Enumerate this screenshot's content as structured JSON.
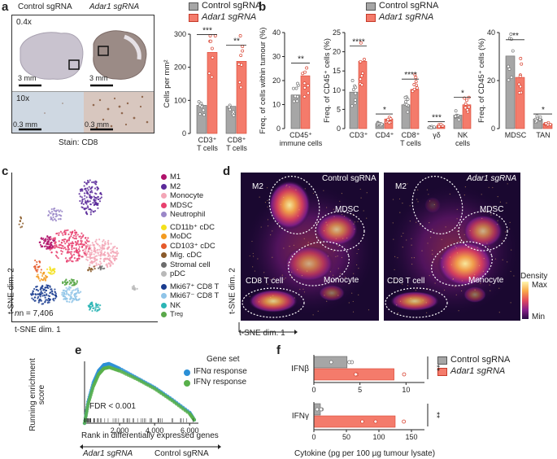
{
  "panels": {
    "a": {
      "label": "a",
      "micro": {
        "control_title": "Control sgRNA",
        "adar_title": "Adar1 sgRNA",
        "mag_low": "0.4x",
        "mag_high": "10x",
        "scale_low_left": "3 mm",
        "scale_low_right": "3 mm",
        "scale_high_left": "0.3 mm",
        "scale_high_right": "0.3 mm",
        "stain": "Stain: CD8"
      },
      "legend": [
        "Control sgRNA",
        "Adar1 sgRNA"
      ],
      "chart": {
        "type": "bar",
        "ylabel": "Cells per mm²",
        "ylim": [
          0,
          300
        ],
        "yticks": [
          "0",
          "100",
          "200",
          "300"
        ],
        "categories": [
          "CD3⁺ T cells",
          "CD8⁺ T cells"
        ],
        "series": [
          {
            "name": "Control sgRNA",
            "values": [
              85,
              82
            ]
          },
          {
            "name": "Adar1 sgRNA",
            "values": [
              245,
              218
            ]
          }
        ],
        "sig": [
          "***",
          "**"
        ]
      }
    },
    "b": {
      "label": "b",
      "legend": [
        "Control sgRNA",
        "Adar1 sgRNA"
      ],
      "chart1": {
        "ylabel": "Freq. of cells within tumour (%)",
        "ylim": [
          0,
          40
        ],
        "yticks": [
          "0",
          "10",
          "20",
          "30",
          "40"
        ],
        "categories": [
          "CD45⁺ immune cells"
        ],
        "series": [
          {
            "name": "Control sgRNA",
            "values": [
              14
            ]
          },
          {
            "name": "Adar1 sgRNA",
            "values": [
              22
            ]
          }
        ],
        "sig": [
          "**"
        ]
      },
      "chart2": {
        "ylabel": "Freq. of CD45⁺ cells (%)",
        "ylim": [
          0,
          25
        ],
        "yticks": [
          "0",
          "5",
          "10",
          "15",
          "20",
          "25"
        ],
        "categories": [
          "CD3⁺",
          "CD4⁺",
          "CD8⁺ T cells",
          "γδ",
          "NK cells"
        ],
        "series": [
          {
            "name": "Control sgRNA",
            "values": [
              9.5,
              1.3,
              6.2,
              0.4,
              3.5
            ]
          },
          {
            "name": "Adar1 sgRNA",
            "values": [
              17.5,
              2.5,
              10.2,
              0.8,
              6.2
            ]
          }
        ],
        "sig": [
          "****",
          "*",
          "****",
          "***",
          "*"
        ]
      },
      "chart3": {
        "ylabel": "Freq. of CD45⁺ cells (%)",
        "ylim": [
          0,
          45
        ],
        "yticks": [
          "0",
          "20",
          "40"
        ],
        "categories": [
          "MDSC",
          "TAN"
        ],
        "series": [
          {
            "name": "Control sgRNA",
            "values": [
              34,
              4.5
            ]
          },
          {
            "name": "Adar1 sgRNA",
            "values": [
              24,
              2.2
            ]
          }
        ],
        "sig": [
          "**",
          "*"
        ]
      }
    },
    "c": {
      "label": "c",
      "xlabel": "t-SNE dim. 1",
      "ylabel": "t-SNE dim. 2",
      "n": "n = 7,406",
      "legend": [
        {
          "name": "M1",
          "color": "#b0126b"
        },
        {
          "name": "M2",
          "color": "#5b2a9a"
        },
        {
          "name": "Monocyte",
          "color": "#f3a6b6"
        },
        {
          "name": "MDSC",
          "color": "#e8406e"
        },
        {
          "name": "Neutrophil",
          "color": "#9a87c8"
        },
        {
          "name": "CD11b⁺ cDC",
          "color": "#f3e11c"
        },
        {
          "name": "MoDC",
          "color": "#f39b21"
        },
        {
          "name": "CD103⁺ cDC",
          "color": "#e55a2b"
        },
        {
          "name": "Mig. cDC",
          "color": "#8a5a2a"
        },
        {
          "name": "Stromal cell",
          "color": "#6d6d6d"
        },
        {
          "name": "pDC",
          "color": "#b9b9b9"
        },
        {
          "name": "Mki67⁺ CD8 T",
          "color": "#1a3c8f"
        },
        {
          "name": "Mki67⁻ CD8 T",
          "color": "#8fc4e8"
        },
        {
          "name": "NK",
          "color": "#2bb5b5"
        },
        {
          "name": "T",
          "sub": "reg",
          "color": "#5aa84a"
        }
      ]
    },
    "d": {
      "label": "d",
      "control_title": "Control sgRNA",
      "adar_title": "Adar1 sgRNA",
      "regions": [
        "M2",
        "MDSC",
        "Monocyte",
        "CD8 T cell"
      ],
      "colorbar_title": "Density",
      "colorbar_max": "Max",
      "colorbar_min": "Min",
      "xlabel": "t-SNE dim. 1",
      "ylabel": "t-SNE dim. 2"
    },
    "e": {
      "label": "e",
      "ylabel": "Running enrichment score",
      "xlabel": "Rank in differentially expressed genes",
      "xticks": [
        "2,000",
        "4,000",
        "6,000"
      ],
      "legend_title": "Gene set",
      "legend": [
        {
          "name": "IFNα response",
          "color": "#2b8fd6"
        },
        {
          "name": "IFNγ response",
          "color": "#58b04a"
        }
      ],
      "fdr": "FDR < 0.001",
      "arrow_left": "Adar1 sgRNA",
      "arrow_right": "Control sgRNA"
    },
    "f": {
      "label": "f",
      "legend": [
        "Control sgRNA",
        "Adar1 sgRNA"
      ],
      "chart_ifnb": {
        "category": "IFNβ",
        "xlim": [
          0,
          12
        ],
        "xticks": [
          "0",
          "5",
          "10"
        ],
        "series": [
          {
            "name": "Control sgRNA",
            "value": 3.6
          },
          {
            "name": "Adar1 sgRNA",
            "value": 8.7
          }
        ],
        "sig": "**"
      },
      "chart_ifng": {
        "category": "IFNγ",
        "xlim": [
          0,
          170
        ],
        "xticks": [
          "0",
          "50",
          "100",
          "150"
        ],
        "series": [
          {
            "name": "Control sgRNA",
            "value": 10
          },
          {
            "name": "Adar1 sgRNA",
            "value": 125
          }
        ],
        "sig": "**"
      },
      "xlabel": "Cytokine (pg per 100 µg tumour lysate)"
    }
  },
  "chart_data": [
    {
      "type": "bar",
      "ylabel": "Cells per mm²",
      "ylim": [
        0,
        300
      ],
      "categories": [
        "CD3⁺ T cells",
        "CD8⁺ T cells"
      ],
      "series": [
        {
          "name": "Control sgRNA",
          "values": [
            85,
            82
          ]
        },
        {
          "name": "Adar1 sgRNA",
          "values": [
            245,
            218
          ]
        }
      ]
    },
    {
      "type": "bar",
      "ylabel": "Freq. of cells within tumour (%)",
      "ylim": [
        0,
        40
      ],
      "categories": [
        "CD45⁺ immune cells"
      ],
      "series": [
        {
          "name": "Control sgRNA",
          "values": [
            14
          ]
        },
        {
          "name": "Adar1 sgRNA",
          "values": [
            22
          ]
        }
      ]
    },
    {
      "type": "bar",
      "ylabel": "Freq. of CD45⁺ cells (%)",
      "ylim": [
        0,
        25
      ],
      "categories": [
        "CD3⁺",
        "CD4⁺",
        "CD8⁺ T cells",
        "γδ",
        "NK cells"
      ],
      "series": [
        {
          "name": "Control sgRNA",
          "values": [
            9.5,
            1.3,
            6.2,
            0.4,
            3.5
          ]
        },
        {
          "name": "Adar1 sgRNA",
          "values": [
            17.5,
            2.5,
            10.2,
            0.8,
            6.2
          ]
        }
      ]
    },
    {
      "type": "bar",
      "ylabel": "Freq. of CD45⁺ cells (%)",
      "ylim": [
        0,
        45
      ],
      "categories": [
        "MDSC",
        "TAN"
      ],
      "series": [
        {
          "name": "Control sgRNA",
          "values": [
            34,
            4.5
          ]
        },
        {
          "name": "Adar1 sgRNA",
          "values": [
            24,
            2.2
          ]
        }
      ]
    },
    {
      "type": "line",
      "ylabel": "Running enrichment score",
      "xlabel": "Rank in differentially expressed genes",
      "xlim": [
        0,
        6500
      ],
      "series": [
        {
          "name": "IFNα response",
          "x": [
            0,
            200,
            500,
            800,
            1100,
            1400,
            2000,
            3000,
            4000,
            5000,
            6000,
            6300
          ],
          "y": [
            0.0,
            0.18,
            0.34,
            0.44,
            0.49,
            0.5,
            0.46,
            0.38,
            0.3,
            0.2,
            0.09,
            0.02
          ]
        },
        {
          "name": "IFNγ response",
          "x": [
            0,
            200,
            500,
            800,
            1100,
            1400,
            2000,
            3000,
            4000,
            5000,
            6000,
            6300
          ],
          "y": [
            0.0,
            0.16,
            0.31,
            0.41,
            0.46,
            0.47,
            0.44,
            0.37,
            0.29,
            0.19,
            0.08,
            0.02
          ]
        }
      ]
    },
    {
      "type": "bar",
      "xlabel": "Cytokine (pg per 100 µg tumour lysate)",
      "categories": [
        "IFNβ",
        "IFNγ"
      ],
      "series": [
        {
          "name": "Control sgRNA",
          "values": [
            3.6,
            10
          ]
        },
        {
          "name": "Adar1 sgRNA",
          "values": [
            8.7,
            125
          ]
        }
      ]
    }
  ]
}
